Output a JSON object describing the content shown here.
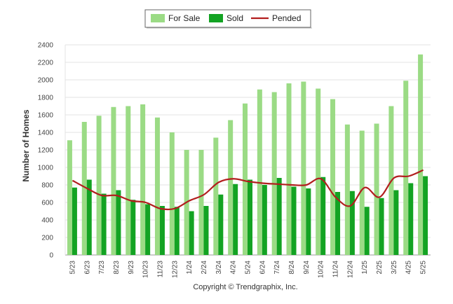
{
  "chart_data": {
    "type": "bar",
    "categories": [
      "5/23",
      "6/23",
      "7/23",
      "8/23",
      "9/23",
      "10/23",
      "11/23",
      "12/23",
      "1/24",
      "2/24",
      "3/24",
      "4/24",
      "5/24",
      "6/24",
      "7/24",
      "8/24",
      "9/24",
      "10/24",
      "11/24",
      "12/24",
      "1/25",
      "2/25",
      "3/25",
      "4/25",
      "5/25"
    ],
    "series": [
      {
        "name": "For Sale",
        "kind": "bar",
        "color": "#9bdb85",
        "values": [
          1310,
          1520,
          1590,
          1690,
          1700,
          1720,
          1570,
          1400,
          1200,
          1200,
          1340,
          1540,
          1730,
          1890,
          1860,
          1960,
          1980,
          1900,
          1780,
          1490,
          1420,
          1500,
          1700,
          1990,
          2290
        ]
      },
      {
        "name": "Sold",
        "kind": "bar",
        "color": "#13a323",
        "values": [
          770,
          860,
          700,
          740,
          630,
          580,
          560,
          550,
          500,
          560,
          690,
          810,
          860,
          800,
          880,
          780,
          760,
          890,
          720,
          730,
          550,
          650,
          740,
          820,
          900
        ]
      },
      {
        "name": "Pended",
        "kind": "line",
        "color": "#b21e1e",
        "values": [
          850,
          760,
          680,
          680,
          620,
          600,
          530,
          530,
          620,
          690,
          830,
          870,
          840,
          820,
          810,
          800,
          800,
          870,
          660,
          560,
          770,
          660,
          880,
          900,
          970
        ]
      }
    ],
    "ylabel": "Number of Homes",
    "xlabel": "",
    "ylim": [
      0,
      2400
    ],
    "yticks": [
      0,
      200,
      400,
      600,
      800,
      1000,
      1200,
      1400,
      1600,
      1800,
      2000,
      2200,
      2400
    ],
    "grid": true,
    "legend": "top-center"
  },
  "footer": {
    "copyright": "Copyright © Trendgraphix, Inc."
  }
}
